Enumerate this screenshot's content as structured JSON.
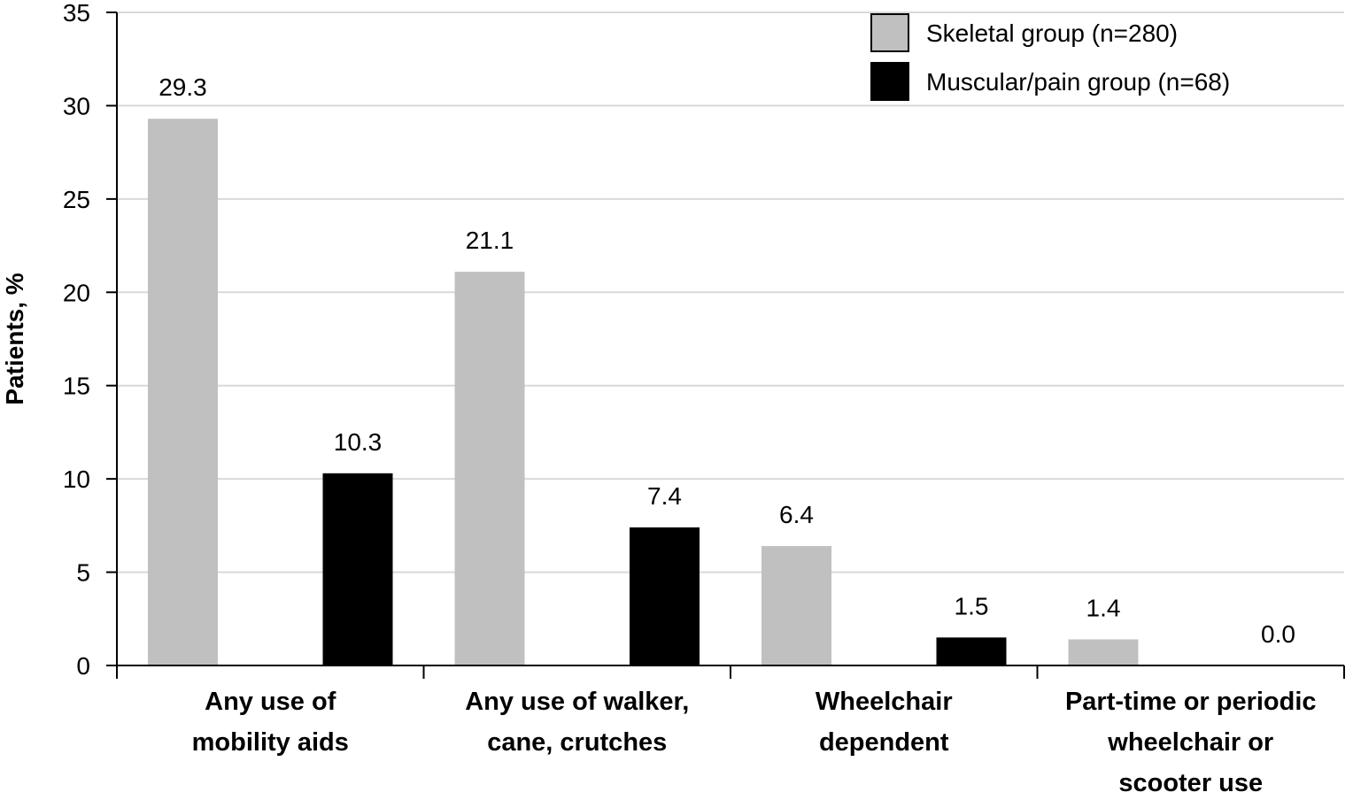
{
  "chart_data": {
    "type": "bar",
    "title": "",
    "xlabel": "",
    "ylabel": "Patients, %",
    "ylim": [
      0,
      35
    ],
    "yticks": [
      0,
      5,
      10,
      15,
      20,
      25,
      30,
      35
    ],
    "grid": true,
    "legend_position": "top-right",
    "categories": [
      [
        "Any use of",
        "mobility aids"
      ],
      [
        "Any use of walker,",
        "cane, crutches"
      ],
      [
        "Wheelchair",
        "dependent"
      ],
      [
        "Part-time or periodic",
        "wheelchair or",
        "scooter use"
      ]
    ],
    "series": [
      {
        "name": "Skeletal group (n=280)",
        "color": "#c0c0c0",
        "values": [
          29.3,
          21.1,
          6.4,
          1.4
        ],
        "labels": [
          "29.3",
          "21.1",
          "6.4",
          "1.4"
        ]
      },
      {
        "name": "Muscular/pain group (n=68)",
        "color": "#000000",
        "values": [
          10.3,
          7.4,
          1.5,
          0.0
        ],
        "labels": [
          "10.3",
          "7.4",
          "1.5",
          "0.0"
        ]
      }
    ]
  }
}
